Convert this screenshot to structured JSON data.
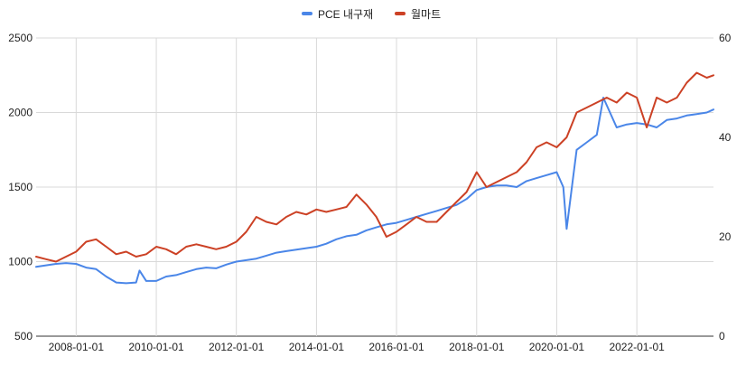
{
  "chart_data": {
    "type": "line",
    "title": "",
    "xlabel": "",
    "ylabel_left": "",
    "ylabel_right": "",
    "x_start": "2007-01-01",
    "x_end": "2023-12-01",
    "x_ticks": [
      "2008-01-01",
      "2010-01-01",
      "2012-01-01",
      "2014-01-01",
      "2016-01-01",
      "2018-01-01",
      "2020-01-01",
      "2022-01-01"
    ],
    "y_left": {
      "min": 500,
      "max": 2500,
      "ticks": [
        500,
        1000,
        1500,
        2000,
        2500
      ]
    },
    "y_right": {
      "min": 0,
      "max": 60,
      "ticks": [
        0,
        20,
        40,
        60
      ]
    },
    "grid": true,
    "legend_position": "top",
    "series": [
      {
        "name": "PCE 내구재",
        "axis": "left",
        "color": "#4a86e8",
        "points": [
          [
            "2007-01-01",
            965
          ],
          [
            "2007-04-01",
            975
          ],
          [
            "2007-07-01",
            985
          ],
          [
            "2007-10-01",
            990
          ],
          [
            "2008-01-01",
            985
          ],
          [
            "2008-04-01",
            960
          ],
          [
            "2008-07-01",
            950
          ],
          [
            "2008-10-01",
            900
          ],
          [
            "2009-01-01",
            860
          ],
          [
            "2009-04-01",
            855
          ],
          [
            "2009-07-01",
            860
          ],
          [
            "2009-08-01",
            940
          ],
          [
            "2009-10-01",
            870
          ],
          [
            "2010-01-01",
            870
          ],
          [
            "2010-04-01",
            900
          ],
          [
            "2010-07-01",
            910
          ],
          [
            "2010-10-01",
            930
          ],
          [
            "2011-01-01",
            950
          ],
          [
            "2011-04-01",
            960
          ],
          [
            "2011-07-01",
            955
          ],
          [
            "2011-10-01",
            980
          ],
          [
            "2012-01-01",
            1000
          ],
          [
            "2012-04-01",
            1010
          ],
          [
            "2012-07-01",
            1020
          ],
          [
            "2012-10-01",
            1040
          ],
          [
            "2013-01-01",
            1060
          ],
          [
            "2013-04-01",
            1070
          ],
          [
            "2013-07-01",
            1080
          ],
          [
            "2013-10-01",
            1090
          ],
          [
            "2014-01-01",
            1100
          ],
          [
            "2014-04-01",
            1120
          ],
          [
            "2014-07-01",
            1150
          ],
          [
            "2014-10-01",
            1170
          ],
          [
            "2015-01-01",
            1180
          ],
          [
            "2015-04-01",
            1210
          ],
          [
            "2015-07-01",
            1230
          ],
          [
            "2015-10-01",
            1250
          ],
          [
            "2016-01-01",
            1260
          ],
          [
            "2016-04-01",
            1280
          ],
          [
            "2016-07-01",
            1300
          ],
          [
            "2016-10-01",
            1320
          ],
          [
            "2017-01-01",
            1340
          ],
          [
            "2017-04-01",
            1360
          ],
          [
            "2017-07-01",
            1380
          ],
          [
            "2017-10-01",
            1420
          ],
          [
            "2018-01-01",
            1480
          ],
          [
            "2018-04-01",
            1500
          ],
          [
            "2018-07-01",
            1510
          ],
          [
            "2018-10-01",
            1510
          ],
          [
            "2019-01-01",
            1500
          ],
          [
            "2019-04-01",
            1540
          ],
          [
            "2019-07-01",
            1560
          ],
          [
            "2019-10-01",
            1580
          ],
          [
            "2020-01-01",
            1600
          ],
          [
            "2020-03-01",
            1500
          ],
          [
            "2020-04-01",
            1220
          ],
          [
            "2020-06-01",
            1580
          ],
          [
            "2020-07-01",
            1750
          ],
          [
            "2020-10-01",
            1800
          ],
          [
            "2021-01-01",
            1850
          ],
          [
            "2021-03-01",
            2100
          ],
          [
            "2021-05-01",
            2000
          ],
          [
            "2021-07-01",
            1900
          ],
          [
            "2021-10-01",
            1920
          ],
          [
            "2022-01-01",
            1930
          ],
          [
            "2022-04-01",
            1920
          ],
          [
            "2022-07-01",
            1900
          ],
          [
            "2022-10-01",
            1950
          ],
          [
            "2023-01-01",
            1960
          ],
          [
            "2023-04-01",
            1980
          ],
          [
            "2023-07-01",
            1990
          ],
          [
            "2023-10-01",
            2000
          ],
          [
            "2023-12-01",
            2020
          ]
        ]
      },
      {
        "name": "월마트",
        "axis": "right",
        "color": "#cc4125",
        "points": [
          [
            "2007-01-01",
            16
          ],
          [
            "2007-04-01",
            15.5
          ],
          [
            "2007-07-01",
            15
          ],
          [
            "2007-10-01",
            16
          ],
          [
            "2008-01-01",
            17
          ],
          [
            "2008-04-01",
            19
          ],
          [
            "2008-07-01",
            19.5
          ],
          [
            "2008-10-01",
            18
          ],
          [
            "2009-01-01",
            16.5
          ],
          [
            "2009-04-01",
            17
          ],
          [
            "2009-07-01",
            16
          ],
          [
            "2009-10-01",
            16.5
          ],
          [
            "2010-01-01",
            18
          ],
          [
            "2010-04-01",
            17.5
          ],
          [
            "2010-07-01",
            16.5
          ],
          [
            "2010-10-01",
            18
          ],
          [
            "2011-01-01",
            18.5
          ],
          [
            "2011-04-01",
            18
          ],
          [
            "2011-07-01",
            17.5
          ],
          [
            "2011-10-01",
            18
          ],
          [
            "2012-01-01",
            19
          ],
          [
            "2012-04-01",
            21
          ],
          [
            "2012-07-01",
            24
          ],
          [
            "2012-10-01",
            23
          ],
          [
            "2013-01-01",
            22.5
          ],
          [
            "2013-04-01",
            24
          ],
          [
            "2013-07-01",
            25
          ],
          [
            "2013-10-01",
            24.5
          ],
          [
            "2014-01-01",
            25.5
          ],
          [
            "2014-04-01",
            25
          ],
          [
            "2014-07-01",
            25.5
          ],
          [
            "2014-10-01",
            26
          ],
          [
            "2015-01-01",
            28.5
          ],
          [
            "2015-04-01",
            26.5
          ],
          [
            "2015-07-01",
            24
          ],
          [
            "2015-10-01",
            20
          ],
          [
            "2016-01-01",
            21
          ],
          [
            "2016-04-01",
            22.5
          ],
          [
            "2016-07-01",
            24
          ],
          [
            "2016-10-01",
            23
          ],
          [
            "2017-01-01",
            23
          ],
          [
            "2017-04-01",
            25
          ],
          [
            "2017-07-01",
            27
          ],
          [
            "2017-10-01",
            29
          ],
          [
            "2018-01-01",
            33
          ],
          [
            "2018-04-01",
            30
          ],
          [
            "2018-07-01",
            31
          ],
          [
            "2018-10-01",
            32
          ],
          [
            "2019-01-01",
            33
          ],
          [
            "2019-04-01",
            35
          ],
          [
            "2019-07-01",
            38
          ],
          [
            "2019-10-01",
            39
          ],
          [
            "2020-01-01",
            38
          ],
          [
            "2020-04-01",
            40
          ],
          [
            "2020-07-01",
            45
          ],
          [
            "2020-10-01",
            46
          ],
          [
            "2021-01-01",
            47
          ],
          [
            "2021-04-01",
            48
          ],
          [
            "2021-07-01",
            47
          ],
          [
            "2021-10-01",
            49
          ],
          [
            "2022-01-01",
            48
          ],
          [
            "2022-04-01",
            42
          ],
          [
            "2022-07-01",
            48
          ],
          [
            "2022-10-01",
            47
          ],
          [
            "2023-01-01",
            48
          ],
          [
            "2023-04-01",
            51
          ],
          [
            "2023-07-01",
            53
          ],
          [
            "2023-10-01",
            52
          ],
          [
            "2023-12-01",
            52.5
          ]
        ]
      }
    ]
  }
}
